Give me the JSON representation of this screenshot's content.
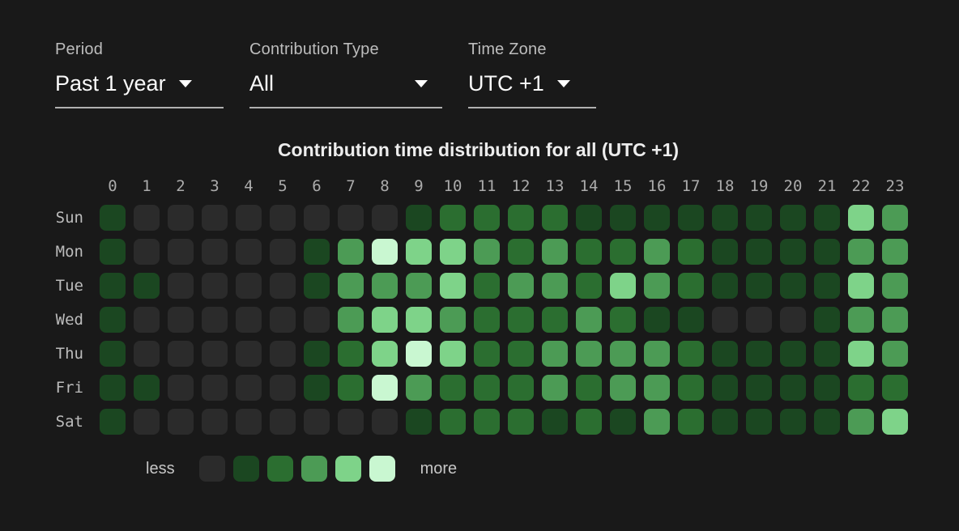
{
  "filters": [
    {
      "label": "Period",
      "value": "Past 1 year"
    },
    {
      "label": "Contribution Type",
      "value": "All"
    },
    {
      "label": "Time Zone",
      "value": "UTC +1"
    }
  ],
  "chart_data": {
    "type": "heatmap",
    "title": "Contribution time distribution for all (UTC +1)",
    "hours": [
      "0",
      "1",
      "2",
      "3",
      "4",
      "5",
      "6",
      "7",
      "8",
      "9",
      "10",
      "11",
      "12",
      "13",
      "14",
      "15",
      "16",
      "17",
      "18",
      "19",
      "20",
      "21",
      "22",
      "23"
    ],
    "days": [
      "Sun",
      "Mon",
      "Tue",
      "Wed",
      "Thu",
      "Fri",
      "Sat"
    ],
    "levels": [
      [
        1,
        0,
        0,
        0,
        0,
        0,
        0,
        0,
        0,
        1,
        2,
        2,
        2,
        2,
        1,
        1,
        1,
        1,
        1,
        1,
        1,
        1,
        4,
        3
      ],
      [
        1,
        0,
        0,
        0,
        0,
        0,
        1,
        3,
        5,
        4,
        4,
        3,
        2,
        3,
        2,
        2,
        3,
        2,
        1,
        1,
        1,
        1,
        3,
        3
      ],
      [
        1,
        1,
        0,
        0,
        0,
        0,
        1,
        3,
        3,
        3,
        4,
        2,
        3,
        3,
        2,
        4,
        3,
        2,
        1,
        1,
        1,
        1,
        4,
        3
      ],
      [
        1,
        0,
        0,
        0,
        0,
        0,
        0,
        3,
        4,
        4,
        3,
        2,
        2,
        2,
        3,
        2,
        1,
        1,
        0,
        0,
        0,
        1,
        3,
        3
      ],
      [
        1,
        0,
        0,
        0,
        0,
        0,
        1,
        2,
        4,
        5,
        4,
        2,
        2,
        3,
        3,
        3,
        3,
        2,
        1,
        1,
        1,
        1,
        4,
        3
      ],
      [
        1,
        1,
        0,
        0,
        0,
        0,
        1,
        2,
        5,
        3,
        2,
        2,
        2,
        3,
        2,
        3,
        3,
        2,
        1,
        1,
        1,
        1,
        2,
        2
      ],
      [
        1,
        0,
        0,
        0,
        0,
        0,
        0,
        0,
        0,
        1,
        2,
        2,
        2,
        1,
        2,
        1,
        3,
        2,
        1,
        1,
        1,
        1,
        3,
        4
      ]
    ],
    "level_colors": [
      "#2b2b2b",
      "#1b4721",
      "#2b6e30",
      "#4c9b55",
      "#7ed389",
      "#c9f7d1"
    ],
    "legend": {
      "less_label": "less",
      "more_label": "more",
      "levels": [
        0,
        1,
        2,
        3,
        4,
        5
      ]
    },
    "value_scale_note": "levels 0 (none) to 5 (most contributions)"
  },
  "colors": {
    "background": "#191919",
    "accent_green": "#4c9b55",
    "text_primary": "#fafafa",
    "text_secondary": "#bdbdbd"
  }
}
